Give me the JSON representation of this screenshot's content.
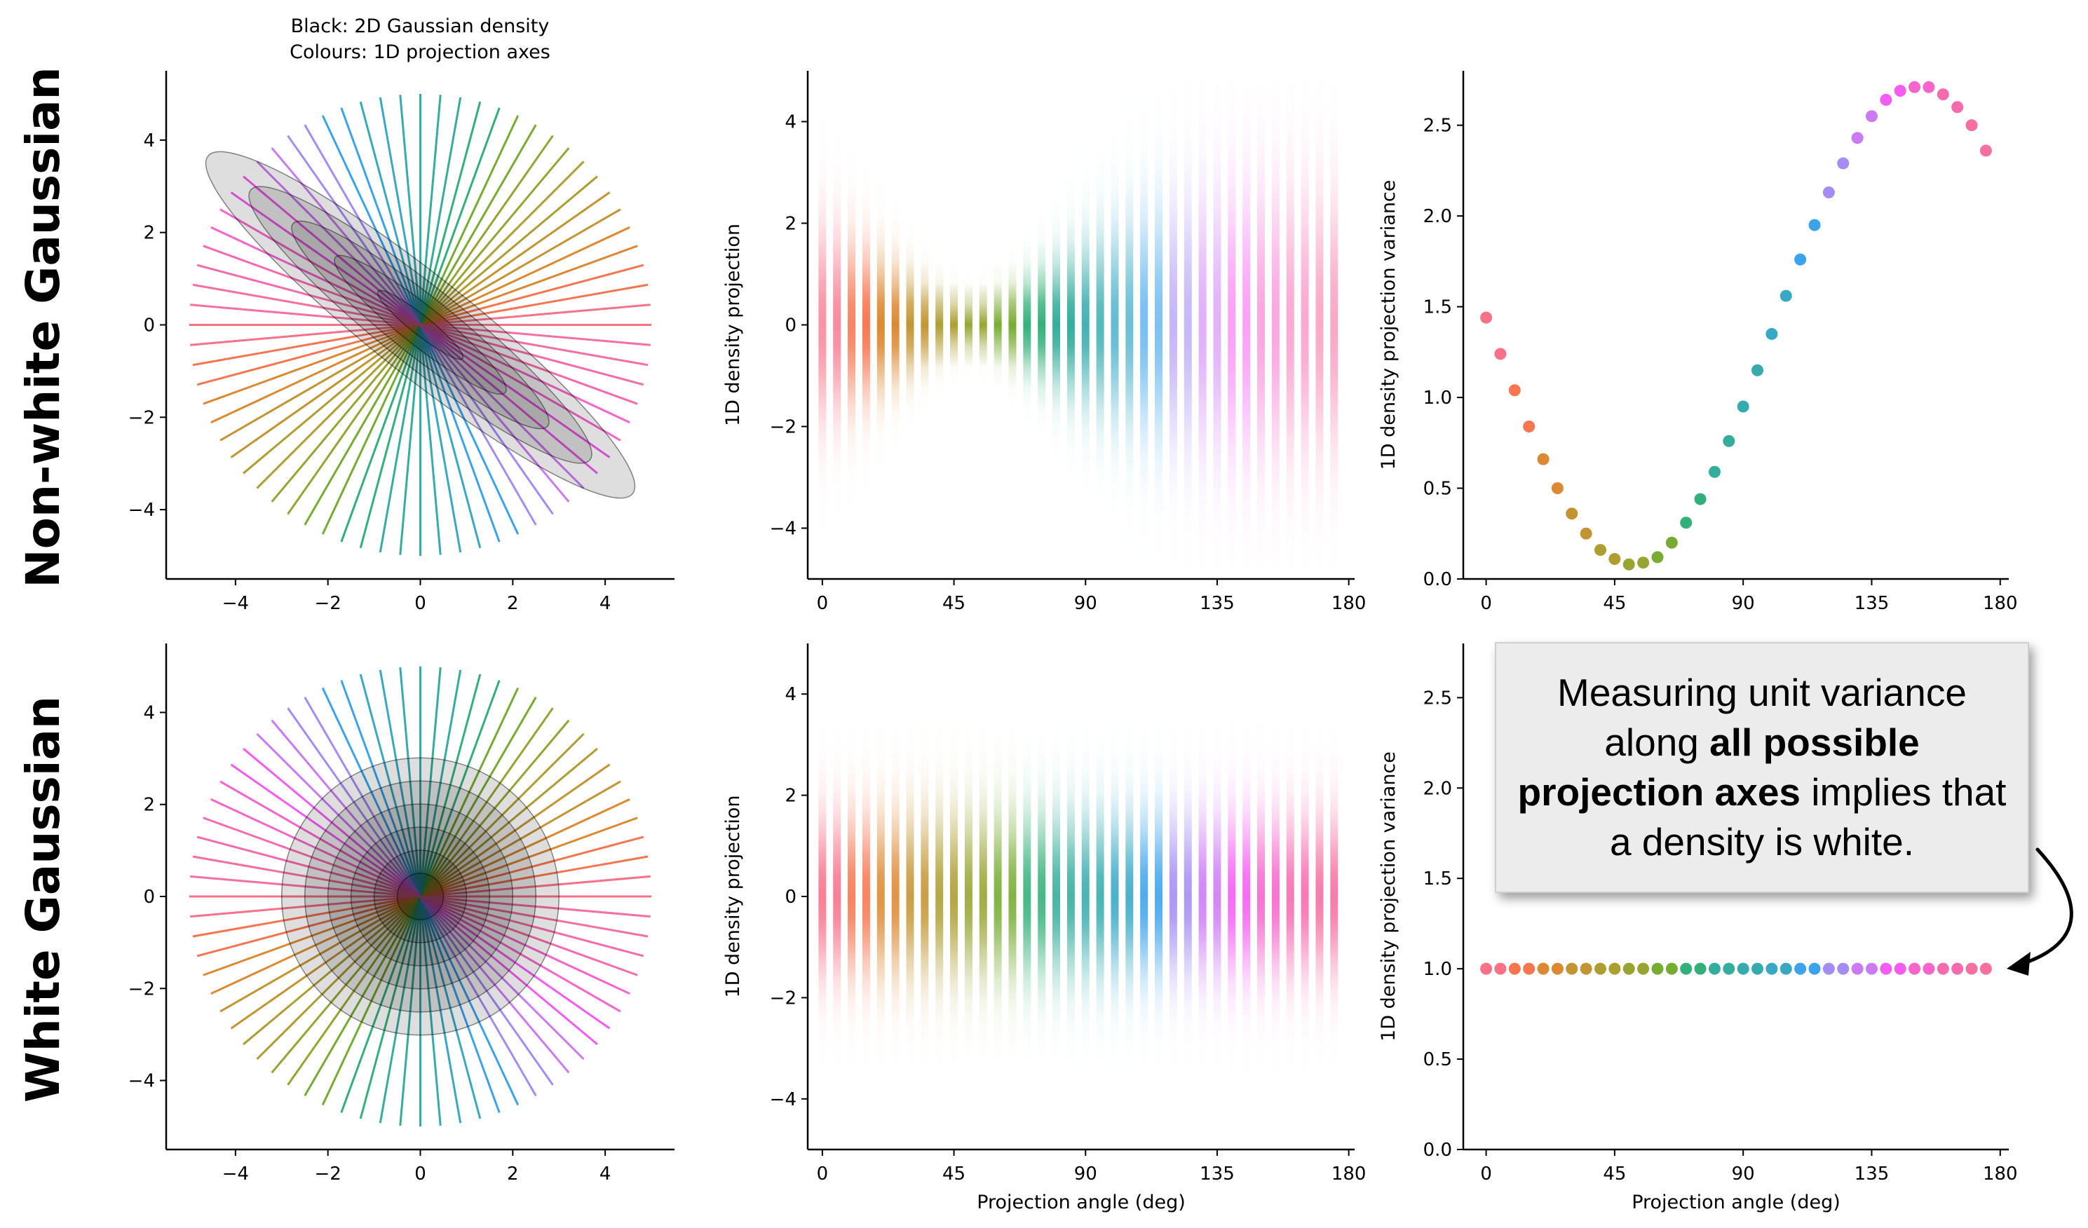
{
  "figure": {
    "row_labels": [
      "Non-white Gaussian",
      "White Gaussian"
    ],
    "legend_title_line1": "Black: 2D Gaussian density",
    "legend_title_line2": "Colours: 1D projection axes",
    "callout": {
      "pre1": "Measuring unit variance along ",
      "bold1": "all possible projection axes",
      "post1": " implies that a density is white."
    }
  },
  "chart_data": [
    {
      "id": "nonwhite-density",
      "type": "scatter",
      "title": "Black: 2D Gaussian density\nColours: 1D projection axes",
      "xlabel": "",
      "ylabel": "",
      "xlim": [
        -5.5,
        5.5
      ],
      "ylim": [
        -5.5,
        5.5
      ],
      "xticks": [
        -4,
        -2,
        0,
        2,
        4
      ],
      "yticks": [
        -4,
        -2,
        0,
        2,
        4
      ],
      "xtick_labels": [
        "−4",
        "−2",
        "0",
        "2",
        "4"
      ],
      "ytick_labels": [
        "−4",
        "−2",
        "0",
        "2",
        "4"
      ],
      "projection_axes": {
        "count": 36,
        "angle_start_deg": 0,
        "angle_step_deg": 5,
        "radius": 5
      },
      "ellipse_half_axes": [
        [
          1.17,
          0.21
        ],
        [
          2.35,
          0.43
        ],
        [
          3.52,
          0.64
        ],
        [
          4.69,
          0.85
        ],
        [
          5.87,
          1.07
        ]
      ],
      "ellipse_angle_deg": -38.5,
      "grid": false
    },
    {
      "id": "nonwhite-projections",
      "type": "heatmap",
      "xlabel": "",
      "ylabel": "1D density projection",
      "xlim": [
        -5,
        182
      ],
      "ylim": [
        -5,
        5
      ],
      "xticks": [
        0,
        45,
        90,
        135,
        180
      ],
      "yticks": [
        -4,
        -2,
        0,
        2,
        4
      ],
      "xtick_labels": [
        "0",
        "45",
        "90",
        "135",
        "180"
      ],
      "ytick_labels": [
        "−4",
        "−2",
        "0",
        "2",
        "4"
      ],
      "angles_deg": [
        0,
        5,
        10,
        15,
        20,
        25,
        30,
        35,
        40,
        45,
        50,
        55,
        60,
        65,
        70,
        75,
        80,
        85,
        90,
        95,
        100,
        105,
        110,
        115,
        120,
        125,
        130,
        135,
        140,
        145,
        150,
        155,
        160,
        165,
        170,
        175
      ],
      "variances": [
        1.44,
        1.23,
        1.03,
        0.84,
        0.66,
        0.5,
        0.35,
        0.23,
        0.15,
        0.1,
        0.08,
        0.09,
        0.13,
        0.2,
        0.3,
        0.43,
        0.58,
        0.75,
        0.94,
        1.14,
        1.35,
        1.55,
        1.75,
        1.94,
        2.12,
        2.28,
        2.42,
        2.54,
        2.62,
        2.68,
        2.7,
        2.7,
        2.66,
        2.59,
        2.5,
        2.37
      ],
      "grid": false
    },
    {
      "id": "nonwhite-variance",
      "type": "scatter",
      "xlabel": "",
      "ylabel": "1D density projection variance",
      "xlim": [
        -8,
        183
      ],
      "ylim": [
        0,
        2.8
      ],
      "xticks": [
        0,
        45,
        90,
        135,
        180
      ],
      "yticks": [
        0,
        0.5,
        1.0,
        1.5,
        2.0,
        2.5
      ],
      "xtick_labels": [
        "0",
        "45",
        "90",
        "135",
        "180"
      ],
      "ytick_labels": [
        "0.0",
        "0.5",
        "1.0",
        "1.5",
        "2.0",
        "2.5"
      ],
      "x": [
        0,
        5,
        10,
        15,
        20,
        25,
        30,
        35,
        40,
        45,
        50,
        55,
        60,
        65,
        70,
        75,
        80,
        85,
        90,
        95,
        100,
        105,
        110,
        115,
        120,
        125,
        130,
        135,
        140,
        145,
        150,
        155,
        160,
        165,
        170,
        175
      ],
      "y": [
        1.44,
        1.24,
        1.04,
        0.84,
        0.66,
        0.5,
        0.36,
        0.25,
        0.16,
        0.11,
        0.08,
        0.09,
        0.12,
        0.2,
        0.31,
        0.44,
        0.59,
        0.76,
        0.95,
        1.15,
        1.35,
        1.56,
        1.76,
        1.95,
        2.13,
        2.29,
        2.43,
        2.55,
        2.64,
        2.69,
        2.71,
        2.71,
        2.67,
        2.6,
        2.5,
        2.36
      ],
      "grid": false
    },
    {
      "id": "white-density",
      "type": "scatter",
      "xlabel": "",
      "ylabel": "",
      "xlim": [
        -5.5,
        5.5
      ],
      "ylim": [
        -5.5,
        5.5
      ],
      "xticks": [
        -4,
        -2,
        0,
        2,
        4
      ],
      "yticks": [
        -4,
        -2,
        0,
        2,
        4
      ],
      "xtick_labels": [
        "−4",
        "−2",
        "0",
        "2",
        "4"
      ],
      "ytick_labels": [
        "−4",
        "−2",
        "0",
        "2",
        "4"
      ],
      "projection_axes": {
        "count": 36,
        "angle_start_deg": 0,
        "angle_step_deg": 5,
        "radius": 5
      },
      "circle_radii": [
        0.5,
        1.0,
        1.5,
        2.0,
        2.5,
        3.0
      ],
      "grid": false
    },
    {
      "id": "white-projections",
      "type": "heatmap",
      "xlabel": "Projection angle (deg)",
      "ylabel": "1D density projection",
      "xlim": [
        -5,
        182
      ],
      "ylim": [
        -5,
        5
      ],
      "xticks": [
        0,
        45,
        90,
        135,
        180
      ],
      "yticks": [
        -4,
        -2,
        0,
        2,
        4
      ],
      "xtick_labels": [
        "0",
        "45",
        "90",
        "135",
        "180"
      ],
      "ytick_labels": [
        "−4",
        "−2",
        "0",
        "2",
        "4"
      ],
      "angles_deg": [
        0,
        5,
        10,
        15,
        20,
        25,
        30,
        35,
        40,
        45,
        50,
        55,
        60,
        65,
        70,
        75,
        80,
        85,
        90,
        95,
        100,
        105,
        110,
        115,
        120,
        125,
        130,
        135,
        140,
        145,
        150,
        155,
        160,
        165,
        170,
        175
      ],
      "variances": [
        1,
        1,
        1,
        1,
        1,
        1,
        1,
        1,
        1,
        1,
        1,
        1,
        1,
        1,
        1,
        1,
        1,
        1,
        1,
        1,
        1,
        1,
        1,
        1,
        1,
        1,
        1,
        1,
        1,
        1,
        1,
        1,
        1,
        1,
        1,
        1
      ],
      "grid": false
    },
    {
      "id": "white-variance",
      "type": "scatter",
      "xlabel": "Projection angle (deg)",
      "ylabel": "1D density projection variance",
      "xlim": [
        -8,
        183
      ],
      "ylim": [
        0,
        2.8
      ],
      "xticks": [
        0,
        45,
        90,
        135,
        180
      ],
      "yticks": [
        0,
        0.5,
        1.0,
        1.5,
        2.0,
        2.5
      ],
      "xtick_labels": [
        "0",
        "45",
        "90",
        "135",
        "180"
      ],
      "ytick_labels": [
        "0.0",
        "0.5",
        "1.0",
        "1.5",
        "2.0",
        "2.5"
      ],
      "x": [
        0,
        5,
        10,
        15,
        20,
        25,
        30,
        35,
        40,
        45,
        50,
        55,
        60,
        65,
        70,
        75,
        80,
        85,
        90,
        95,
        100,
        105,
        110,
        115,
        120,
        125,
        130,
        135,
        140,
        145,
        150,
        155,
        160,
        165,
        170,
        175
      ],
      "y": [
        1,
        1,
        1,
        1,
        1,
        1,
        1,
        1,
        1,
        1,
        1,
        1,
        1,
        1,
        1,
        1,
        1,
        1,
        1,
        1,
        1,
        1,
        1,
        1,
        1,
        1,
        1,
        1,
        1,
        1,
        1,
        1,
        1,
        1,
        1,
        1
      ],
      "grid": false
    }
  ]
}
